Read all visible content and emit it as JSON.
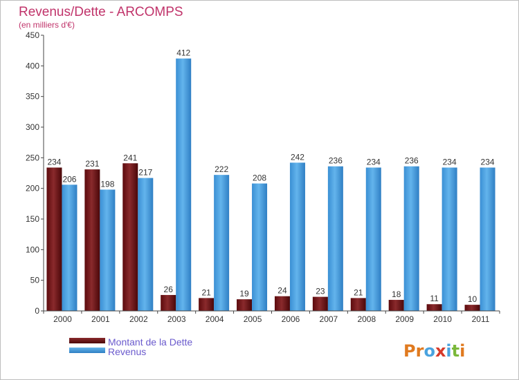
{
  "chart_data": {
    "type": "bar",
    "title": "Revenus/Dette - ARCOMPS",
    "subtitle": "(en milliers d'€)",
    "xlabel": "",
    "ylabel": "",
    "ylim": [
      0,
      450
    ],
    "yticks": [
      0,
      50,
      100,
      150,
      200,
      250,
      300,
      350,
      400,
      450
    ],
    "grid": false,
    "categories": [
      "2000",
      "2001",
      "2002",
      "2003",
      "2004",
      "2005",
      "2006",
      "2007",
      "2008",
      "2009",
      "2010",
      "2011"
    ],
    "series": [
      {
        "name": "Montant de la Dette",
        "color": "#6b0f12",
        "values": [
          234,
          231,
          241,
          26,
          21,
          19,
          24,
          23,
          21,
          18,
          11,
          10
        ]
      },
      {
        "name": "Revenus",
        "color": "#4a9fdf",
        "values": [
          206,
          198,
          217,
          412,
          222,
          208,
          242,
          236,
          234,
          236,
          234,
          234
        ]
      }
    ],
    "legend_position": "bottom-left"
  },
  "colors": {
    "title": "#c0336a",
    "subtitle": "#c0336a",
    "legend_text": "#6a5acd",
    "axis_text": "#333333"
  },
  "brand": {
    "logo_text": "Proxiti"
  }
}
